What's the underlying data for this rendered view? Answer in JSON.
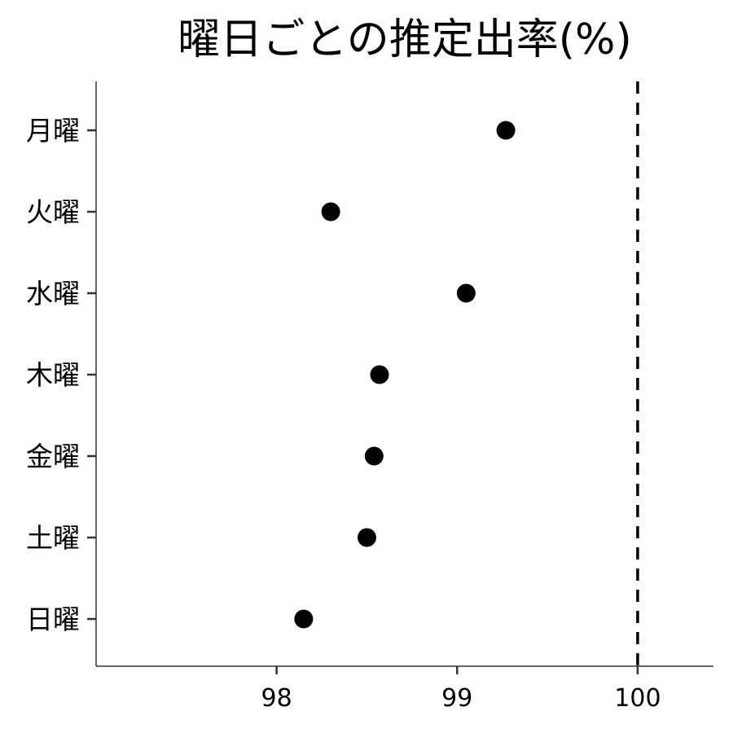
{
  "chart_data": {
    "type": "scatter",
    "title": "曜日ごとの推定出率(%)",
    "xlabel": "",
    "ylabel": "",
    "categories": [
      "月曜",
      "火曜",
      "水曜",
      "木曜",
      "金曜",
      "土曜",
      "日曜"
    ],
    "values": [
      99.27,
      98.3,
      99.05,
      98.57,
      98.54,
      98.5,
      98.15
    ],
    "xlim": [
      97.0,
      100.42
    ],
    "xticks": [
      98,
      99,
      100
    ],
    "xtick_labels": [
      "98",
      "99",
      "100"
    ],
    "reference_line": {
      "x": 100,
      "style": "dashed",
      "color": "#000000"
    },
    "point_color": "#000000",
    "grid": false,
    "legend": "none"
  }
}
